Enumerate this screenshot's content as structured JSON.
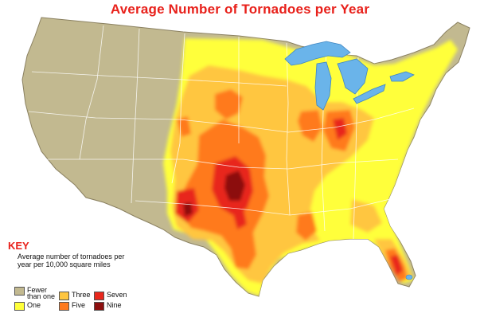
{
  "title": "Average Number of Tornadoes per Year",
  "key": {
    "title": "KEY",
    "description": "Average number of tornadoes per year per 10,000 square miles",
    "items": [
      {
        "label": "Fewer than one",
        "color": "#c2b990",
        "level": 0
      },
      {
        "label": "One",
        "color": "#ffff3a",
        "level": 1
      },
      {
        "label": "Three",
        "color": "#ffc640",
        "level": 3
      },
      {
        "label": "Five",
        "color": "#ff7a1f",
        "level": 5
      },
      {
        "label": "Seven",
        "color": "#e8271c",
        "level": 7
      },
      {
        "label": "Nine",
        "color": "#8c0f0f",
        "level": 9
      }
    ]
  },
  "colors": {
    "land_low": "#c2b990",
    "water": "#6ab4ea",
    "borders": "#ffffff",
    "title": "#e8201a"
  }
}
